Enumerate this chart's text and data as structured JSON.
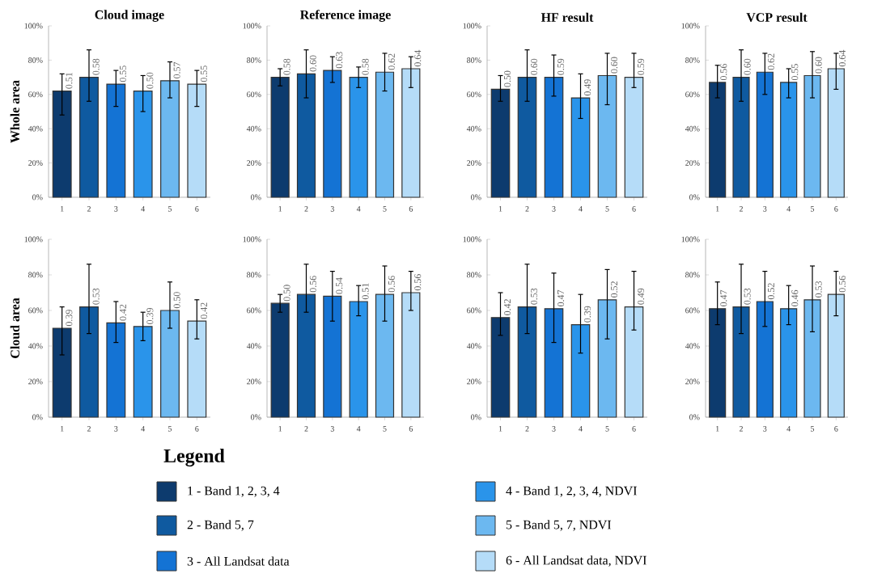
{
  "chart_data": [
    {
      "type": "bar",
      "title": "Cloud image",
      "ylabel": "Whole area",
      "categories": [
        "1",
        "2",
        "3",
        "4",
        "5",
        "6"
      ],
      "values": [
        62,
        70,
        66,
        62,
        68,
        66
      ],
      "errors": [
        [
          48,
          72
        ],
        [
          56,
          86
        ],
        [
          53,
          74
        ],
        [
          50,
          71
        ],
        [
          58,
          79
        ],
        [
          53,
          74
        ]
      ],
      "annotations": [
        {
          "text": "0.51",
          "x": "1",
          "y": 62
        },
        {
          "text": "0.58",
          "x": "2",
          "y": 70
        },
        {
          "text": "0.55",
          "x": "3",
          "y": 66
        },
        {
          "text": "0.50",
          "x": "4",
          "y": 62
        },
        {
          "text": "0.57",
          "x": "5",
          "y": 68
        },
        {
          "text": "0.55",
          "x": "6",
          "y": 66
        }
      ],
      "colors": [
        "#0d3b6e",
        "#0f5aa0",
        "#1473d4",
        "#2a94ea",
        "#6cb8f0",
        "#b5dcf8"
      ],
      "ylim": [
        0,
        100
      ],
      "yticks": [
        {
          "value": 0,
          "label": "0%"
        },
        {
          "value": 20,
          "label": "20%"
        },
        {
          "value": 40,
          "label": "40%"
        },
        {
          "value": 60,
          "label": "60%"
        },
        {
          "value": 80,
          "label": "80%"
        },
        {
          "value": 100,
          "label": "100%"
        }
      ]
    },
    {
      "type": "bar",
      "title": "Reference image",
      "categories": [
        "1",
        "2",
        "3",
        "4",
        "5",
        "6"
      ],
      "values": [
        70,
        72,
        74,
        70,
        73,
        75
      ],
      "errors": [
        [
          65,
          75
        ],
        [
          58,
          86
        ],
        [
          67,
          82
        ],
        [
          64,
          76
        ],
        [
          62,
          84
        ],
        [
          64,
          82
        ]
      ],
      "annotations": [
        {
          "text": "0.58",
          "x": "1",
          "y": 70
        },
        {
          "text": "0.60",
          "x": "2",
          "y": 72
        },
        {
          "text": "0.63",
          "x": "3",
          "y": 74
        },
        {
          "text": "0.58",
          "x": "4",
          "y": 70
        },
        {
          "text": "0.62",
          "x": "5",
          "y": 73
        },
        {
          "text": "0.64",
          "x": "6",
          "y": 75
        }
      ],
      "colors": [
        "#0d3b6e",
        "#0f5aa0",
        "#1473d4",
        "#2a94ea",
        "#6cb8f0",
        "#b5dcf8"
      ],
      "ylim": [
        0,
        100
      ],
      "yticks": [
        {
          "value": 0,
          "label": "0%"
        },
        {
          "value": 20,
          "label": "20%"
        },
        {
          "value": 40,
          "label": "40%"
        },
        {
          "value": 60,
          "label": "60%"
        },
        {
          "value": 80,
          "label": "80%"
        },
        {
          "value": 100,
          "label": "100%"
        }
      ]
    },
    {
      "type": "bar",
      "title": "HF result",
      "categories": [
        "1",
        "2",
        "3",
        "4",
        "5",
        "6"
      ],
      "values": [
        63,
        70,
        70,
        58,
        71,
        70
      ],
      "errors": [
        [
          56,
          71
        ],
        [
          56,
          86
        ],
        [
          59,
          83
        ],
        [
          46,
          72
        ],
        [
          54,
          84
        ],
        [
          64,
          84
        ]
      ],
      "annotations": [
        {
          "text": "0.50",
          "x": "1",
          "y": 63
        },
        {
          "text": "0.60",
          "x": "2",
          "y": 70
        },
        {
          "text": "0.59",
          "x": "3",
          "y": 70
        },
        {
          "text": "0.49",
          "x": "4",
          "y": 58
        },
        {
          "text": "0.60",
          "x": "5",
          "y": 71
        },
        {
          "text": "0.59",
          "x": "6",
          "y": 70
        }
      ],
      "colors": [
        "#0d3b6e",
        "#0f5aa0",
        "#1473d4",
        "#2a94ea",
        "#6cb8f0",
        "#b5dcf8"
      ],
      "ylim": [
        0,
        100
      ],
      "yticks": [
        {
          "value": 0,
          "label": "0%"
        },
        {
          "value": 20,
          "label": "20%"
        },
        {
          "value": 40,
          "label": "40%"
        },
        {
          "value": 60,
          "label": "60%"
        },
        {
          "value": 80,
          "label": "80%"
        },
        {
          "value": 100,
          "label": "100%"
        }
      ]
    },
    {
      "type": "bar",
      "title": "VCP result",
      "categories": [
        "1",
        "2",
        "3",
        "4",
        "5",
        "6"
      ],
      "values": [
        67,
        70,
        73,
        67,
        71,
        75
      ],
      "errors": [
        [
          58,
          77
        ],
        [
          56,
          86
        ],
        [
          60,
          84
        ],
        [
          58,
          75
        ],
        [
          58,
          85
        ],
        [
          63,
          84
        ]
      ],
      "annotations": [
        {
          "text": "0.56",
          "x": "1",
          "y": 67
        },
        {
          "text": "0.60",
          "x": "2",
          "y": 70
        },
        {
          "text": "0.62",
          "x": "3",
          "y": 73
        },
        {
          "text": "0.55",
          "x": "4",
          "y": 67
        },
        {
          "text": "0.60",
          "x": "5",
          "y": 71
        },
        {
          "text": "0.64",
          "x": "6",
          "y": 75
        }
      ],
      "colors": [
        "#0d3b6e",
        "#0f5aa0",
        "#1473d4",
        "#2a94ea",
        "#6cb8f0",
        "#b5dcf8"
      ],
      "ylim": [
        0,
        100
      ],
      "yticks": [
        {
          "value": 0,
          "label": "0%"
        },
        {
          "value": 20,
          "label": "20%"
        },
        {
          "value": 40,
          "label": "40%"
        },
        {
          "value": 60,
          "label": "60%"
        },
        {
          "value": 80,
          "label": "80%"
        },
        {
          "value": 100,
          "label": "100%"
        }
      ]
    },
    {
      "type": "bar",
      "ylabel": "Cloud area",
      "categories": [
        "1",
        "2",
        "3",
        "4",
        "5",
        "6"
      ],
      "values": [
        50,
        62,
        53,
        51,
        60,
        54
      ],
      "errors": [
        [
          35,
          62
        ],
        [
          47,
          86
        ],
        [
          42,
          65
        ],
        [
          43,
          59
        ],
        [
          50,
          76
        ],
        [
          44,
          66
        ]
      ],
      "annotations": [
        {
          "text": "0.39",
          "x": "1",
          "y": 50
        },
        {
          "text": "0.53",
          "x": "2",
          "y": 62
        },
        {
          "text": "0.42",
          "x": "3",
          "y": 53
        },
        {
          "text": "0.39",
          "x": "4",
          "y": 51
        },
        {
          "text": "0.50",
          "x": "5",
          "y": 60
        },
        {
          "text": "0.42",
          "x": "6",
          "y": 54
        }
      ],
      "colors": [
        "#0d3b6e",
        "#0f5aa0",
        "#1473d4",
        "#2a94ea",
        "#6cb8f0",
        "#b5dcf8"
      ],
      "ylim": [
        0,
        100
      ],
      "yticks": [
        {
          "value": 0,
          "label": "0%"
        },
        {
          "value": 20,
          "label": "20%"
        },
        {
          "value": 40,
          "label": "40%"
        },
        {
          "value": 60,
          "label": "60%"
        },
        {
          "value": 80,
          "label": "80%"
        },
        {
          "value": 100,
          "label": "100%"
        }
      ]
    },
    {
      "type": "bar",
      "categories": [
        "1",
        "2",
        "3",
        "4",
        "5",
        "6"
      ],
      "values": [
        64,
        69,
        68,
        65,
        69,
        70
      ],
      "errors": [
        [
          59,
          69
        ],
        [
          59,
          86
        ],
        [
          54,
          82
        ],
        [
          57,
          74
        ],
        [
          54,
          85
        ],
        [
          60,
          82
        ]
      ],
      "annotations": [
        {
          "text": "0.50",
          "x": "1",
          "y": 64
        },
        {
          "text": "0.56",
          "x": "2",
          "y": 69
        },
        {
          "text": "0.54",
          "x": "3",
          "y": 68
        },
        {
          "text": "0.51",
          "x": "4",
          "y": 65
        },
        {
          "text": "0.56",
          "x": "5",
          "y": 69
        },
        {
          "text": "0.56",
          "x": "6",
          "y": 70
        }
      ],
      "colors": [
        "#0d3b6e",
        "#0f5aa0",
        "#1473d4",
        "#2a94ea",
        "#6cb8f0",
        "#b5dcf8"
      ],
      "ylim": [
        0,
        100
      ],
      "yticks": [
        {
          "value": 0,
          "label": "0%"
        },
        {
          "value": 20,
          "label": "20%"
        },
        {
          "value": 40,
          "label": "40%"
        },
        {
          "value": 60,
          "label": "60%"
        },
        {
          "value": 80,
          "label": "80%"
        },
        {
          "value": 100,
          "label": "100%"
        }
      ]
    },
    {
      "type": "bar",
      "categories": [
        "1",
        "2",
        "3",
        "4",
        "5",
        "6"
      ],
      "values": [
        56,
        62,
        61,
        52,
        66,
        62
      ],
      "errors": [
        [
          46,
          70
        ],
        [
          47,
          86
        ],
        [
          42,
          81
        ],
        [
          36,
          69
        ],
        [
          44,
          83
        ],
        [
          49,
          82
        ]
      ],
      "annotations": [
        {
          "text": "0.42",
          "x": "1",
          "y": 56
        },
        {
          "text": "0.53",
          "x": "2",
          "y": 62
        },
        {
          "text": "0.47",
          "x": "3",
          "y": 61
        },
        {
          "text": "0.39",
          "x": "4",
          "y": 52
        },
        {
          "text": "0.52",
          "x": "5",
          "y": 66
        },
        {
          "text": "0.49",
          "x": "6",
          "y": 62
        }
      ],
      "colors": [
        "#0d3b6e",
        "#0f5aa0",
        "#1473d4",
        "#2a94ea",
        "#6cb8f0",
        "#b5dcf8"
      ],
      "ylim": [
        0,
        100
      ],
      "yticks": [
        {
          "value": 0,
          "label": "0%"
        },
        {
          "value": 20,
          "label": "20%"
        },
        {
          "value": 40,
          "label": "40%"
        },
        {
          "value": 60,
          "label": "60%"
        },
        {
          "value": 80,
          "label": "80%"
        },
        {
          "value": 100,
          "label": "100%"
        }
      ]
    },
    {
      "type": "bar",
      "categories": [
        "1",
        "2",
        "3",
        "4",
        "5",
        "6"
      ],
      "values": [
        61,
        62,
        65,
        61,
        66,
        69
      ],
      "errors": [
        [
          52,
          76
        ],
        [
          47,
          86
        ],
        [
          51,
          82
        ],
        [
          52,
          74
        ],
        [
          48,
          85
        ],
        [
          57,
          82
        ]
      ],
      "annotations": [
        {
          "text": "0.47",
          "x": "1",
          "y": 61
        },
        {
          "text": "0.53",
          "x": "2",
          "y": 62
        },
        {
          "text": "0.52",
          "x": "3",
          "y": 65
        },
        {
          "text": "0.46",
          "x": "4",
          "y": 61
        },
        {
          "text": "0.53",
          "x": "5",
          "y": 66
        },
        {
          "text": "0.56",
          "x": "6",
          "y": 69
        }
      ],
      "colors": [
        "#0d3b6e",
        "#0f5aa0",
        "#1473d4",
        "#2a94ea",
        "#6cb8f0",
        "#b5dcf8"
      ],
      "ylim": [
        0,
        100
      ],
      "yticks": [
        {
          "value": 0,
          "label": "0%"
        },
        {
          "value": 20,
          "label": "20%"
        },
        {
          "value": 40,
          "label": "40%"
        },
        {
          "value": 60,
          "label": "60%"
        },
        {
          "value": 80,
          "label": "80%"
        },
        {
          "value": 100,
          "label": "100%"
        }
      ]
    },
    {
      "type": "other",
      "title": "Legend",
      "categories": [
        "1 - Band 1, 2, 3, 4",
        "2 - Band 5, 7",
        "3 - All Landsat data",
        "4 - Band 1, 2, 3, 4, NDVI",
        "5 - Band 5, 7, NDVI",
        "6 - All Landsat data, NDVI"
      ],
      "colors": [
        "#0d3b6e",
        "#0f5aa0",
        "#1473d4",
        "#2a94ea",
        "#6cb8f0",
        "#b5dcf8"
      ]
    }
  ]
}
